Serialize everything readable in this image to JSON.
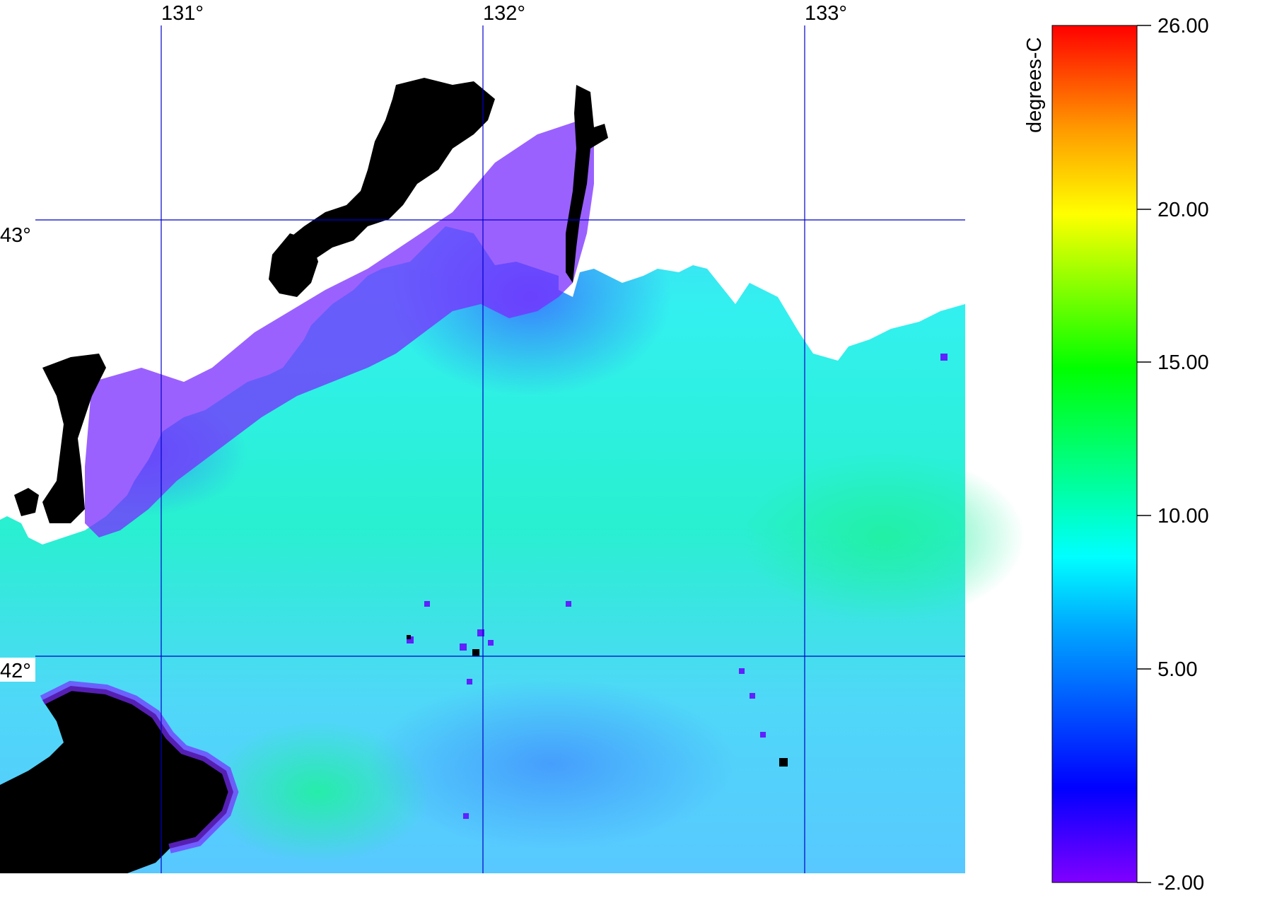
{
  "map": {
    "longitude_labels": [
      "131°",
      "132°",
      "133°"
    ],
    "latitude_labels": [
      "43°",
      "42°"
    ],
    "grid_color": "#0000cc",
    "land_color": "#000000",
    "no_data_color": "#ffffff"
  },
  "colorbar": {
    "unit_label": "degrees-C",
    "tick_labels": [
      "26.00",
      "20.00",
      "15.00",
      "10.00",
      "5.00",
      "-2.00"
    ],
    "range": [
      -2,
      26
    ],
    "colormap": [
      "#8000ff",
      "#0000ff",
      "#00ffff",
      "#00ff00",
      "#ffff00",
      "#ff8000",
      "#ff0000"
    ]
  }
}
